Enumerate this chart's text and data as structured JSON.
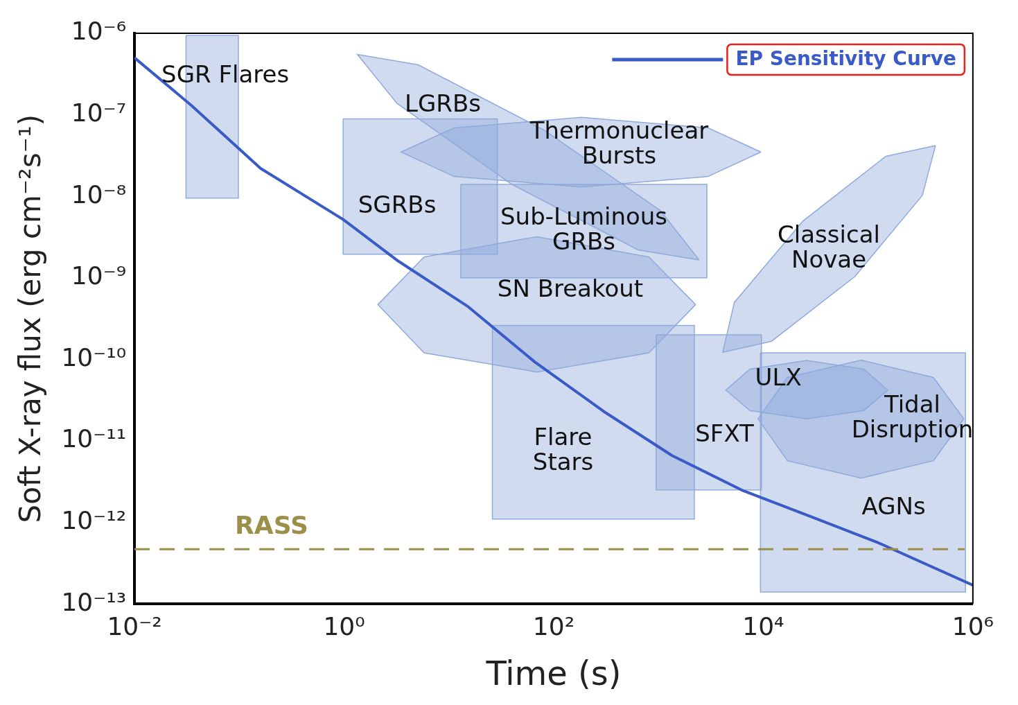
{
  "chart_data": {
    "type": "line",
    "xlabel": "Time (s)",
    "ylabel": "Soft X-ray flux (erg cm⁻²s⁻¹)",
    "log": "xy",
    "xlim": [
      0.01,
      1000000
    ],
    "ylim": [
      1e-13,
      1e-06
    ],
    "xticks": [
      {
        "value": 0.01,
        "label": "10⁻²"
      },
      {
        "value": 1,
        "label": "10⁰"
      },
      {
        "value": 100,
        "label": "10²"
      },
      {
        "value": 10000,
        "label": "10⁴"
      },
      {
        "value": 1000000,
        "label": "10⁶"
      }
    ],
    "yticks": [
      {
        "value": 1e-13,
        "label": "10⁻¹³"
      },
      {
        "value": 1e-12,
        "label": "10⁻¹²"
      },
      {
        "value": 1e-11,
        "label": "10⁻¹¹"
      },
      {
        "value": 1e-10,
        "label": "10⁻¹⁰"
      },
      {
        "value": 1e-09,
        "label": "10⁻⁹"
      },
      {
        "value": 1e-08,
        "label": "10⁻⁸"
      },
      {
        "value": 1e-07,
        "label": "10⁻⁷"
      },
      {
        "value": 1e-06,
        "label": "10⁻⁶"
      }
    ],
    "legend": "top right",
    "series": [
      {
        "type": "area",
        "name": "SGR Flares",
        "color": "#8faadc",
        "x": [
          0.031,
          0.098,
          0.098,
          0.031,
          0.031
        ],
        "values": [
          9.4e-07,
          9.4e-07,
          9.5e-09,
          9.5e-09,
          9.4e-07
        ]
      },
      {
        "type": "area",
        "name": "SGRBs",
        "color": "#8faadc",
        "x": [
          0.98,
          29,
          29,
          0.98,
          0.98
        ],
        "values": [
          8.9e-08,
          8.9e-08,
          1.95e-09,
          1.95e-09,
          8.9e-08
        ]
      },
      {
        "type": "area",
        "name": "LGRBs",
        "color": "#8faadc",
        "x": [
          2440,
          640,
          40,
          3.2,
          1.34,
          5.1,
          81,
          1040,
          2440
        ],
        "values": [
          1.66e-09,
          2.2e-09,
          1.4e-08,
          1.38e-07,
          5.5e-07,
          4.1e-07,
          6.5e-08,
          6.7e-09,
          1.66e-09
        ]
      },
      {
        "type": "area",
        "name": "Thermonuclear\nBursts",
        "color": "#8faadc",
        "x": [
          9500,
          2970,
          183,
          11.2,
          3.5,
          11.2,
          183,
          2970,
          9500
        ],
        "values": [
          3.5e-08,
          1.75e-08,
          1.3e-08,
          1.75e-08,
          3.5e-08,
          6.9e-08,
          9.3e-08,
          6.9e-08,
          3.5e-08
        ]
      },
      {
        "type": "area",
        "name": "Sub-Luminous\nGRBs",
        "color": "#8faadc",
        "x": [
          13,
          2900,
          2900,
          13,
          13
        ],
        "values": [
          1.4e-08,
          1.4e-08,
          1e-09,
          1e-09,
          1.4e-08
        ]
      },
      {
        "type": "area",
        "name": "SN Breakout",
        "color": "#8faadc",
        "x": [
          2260,
          810,
          69,
          5.8,
          2.1,
          5.8,
          69,
          810,
          2260
        ],
        "values": [
          4.7e-10,
          1.2e-10,
          7e-11,
          1.2e-10,
          4.7e-10,
          1.8e-09,
          3.2e-09,
          1.8e-09,
          4.7e-10
        ]
      },
      {
        "type": "area",
        "name": "Classical\nNovae",
        "color": "#8faadc",
        "x": [
          440000,
          330000,
          75000,
          12000,
          4100,
          5300,
          24000,
          148000,
          440000
        ],
        "values": [
          4.2e-08,
          1.03e-08,
          1.04e-09,
          1.67e-10,
          1.22e-10,
          5e-10,
          5e-09,
          3.1e-08,
          4.2e-08
        ]
      },
      {
        "type": "area",
        "name": "Flare\nStars",
        "color": "#8faadc",
        "x": [
          26,
          2200,
          2200,
          26,
          26
        ],
        "values": [
          2.6e-10,
          2.6e-10,
          1.1e-12,
          1.1e-12,
          2.6e-10
        ]
      },
      {
        "type": "area",
        "name": "SFXT",
        "color": "#8faadc",
        "x": [
          950,
          9600,
          9600,
          950,
          950
        ],
        "values": [
          2e-10,
          2e-10,
          2.5e-12,
          2.5e-12,
          2e-10
        ]
      },
      {
        "type": "area",
        "name": "AGNs",
        "color": "#8faadc",
        "x": [
          9400,
          850000,
          850000,
          9400,
          9400
        ],
        "values": [
          1.2e-10,
          1.2e-10,
          1.4e-13,
          1.4e-13,
          1.2e-10
        ]
      },
      {
        "type": "area",
        "name": "Tidal\nDisruption",
        "color": "#8faadc",
        "x": [
          820000,
          420000,
          86000,
          17000,
          8900,
          17000,
          86000,
          420000,
          820000
        ],
        "values": [
          1.86e-11,
          5.7e-12,
          3.5e-12,
          5.7e-12,
          1.86e-11,
          6e-11,
          9.8e-11,
          6e-11,
          1.86e-11
        ]
      },
      {
        "type": "area",
        "name": "ULX",
        "color": "#8faadc",
        "x": [
          154000,
          91000,
          26000,
          7450,
          4400,
          7450,
          26000,
          91000,
          154000
        ],
        "values": [
          4.2e-11,
          2.35e-11,
          1.86e-11,
          2.35e-11,
          4.2e-11,
          7.6e-11,
          9.7e-11,
          7.6e-11,
          4.2e-11
        ]
      },
      {
        "name": "EP Sensitivity Curve",
        "color": "#3a5bc7",
        "x": [
          0.01,
          0.035,
          0.16,
          0.98,
          3.3,
          15,
          66,
          300,
          1350,
          6200,
          27500,
          126000,
          1000000
        ],
        "values": [
          5e-07,
          1.3e-07,
          2.2e-08,
          5.2e-09,
          1.6e-09,
          4.5e-10,
          9.3e-11,
          2.3e-11,
          6.6e-12,
          2.5e-12,
          1.2e-12,
          5.6e-13,
          1.7e-13
        ]
      }
    ],
    "ref_lines": [
      {
        "axis": "y",
        "value": 4.7e-13,
        "label": "RASS",
        "color": "#9c8f4a",
        "line_style": "dashed"
      }
    ]
  }
}
